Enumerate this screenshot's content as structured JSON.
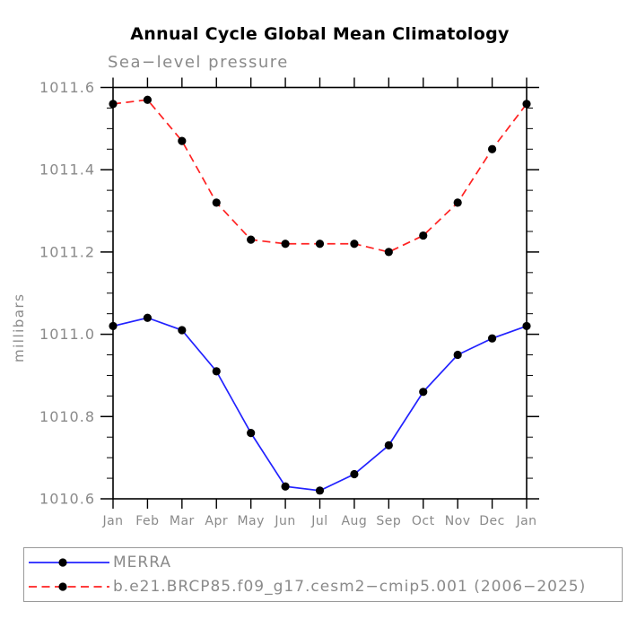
{
  "chart_data": {
    "type": "line",
    "title": "Annual Cycle Global Mean Climatology",
    "subtitle": "Sea−level pressure",
    "ylabel": "millibars",
    "xlabel": "",
    "categories": [
      "Jan",
      "Feb",
      "Mar",
      "Apr",
      "May",
      "Jun",
      "Jul",
      "Aug",
      "Sep",
      "Oct",
      "Nov",
      "Dec",
      "Jan"
    ],
    "ylim": [
      1010.6,
      1011.6
    ],
    "ytick_major": 0.2,
    "ytick_minor": 0.05,
    "ytick_labels": [
      "1011.6",
      "1011.4",
      "1011.2",
      "1011.0",
      "1010.8",
      "1010.6"
    ],
    "grid": false,
    "legend_position": "bottom",
    "series": [
      {
        "name": "MERRA",
        "style": "solid",
        "color": "#2222ff",
        "marker": "circle",
        "marker_color": "#000000",
        "values": [
          1011.02,
          1011.04,
          1011.01,
          1010.91,
          1010.76,
          1010.63,
          1010.62,
          1010.66,
          1010.73,
          1010.86,
          1010.95,
          1010.99,
          1011.02
        ]
      },
      {
        "name": "b.e21.BRCP85.f09_g17.cesm2−cmip5.001 (2006−2025)",
        "style": "dashed",
        "color": "#ff2222",
        "marker": "circle",
        "marker_color": "#000000",
        "values": [
          1011.56,
          1011.57,
          1011.47,
          1011.32,
          1011.23,
          1011.22,
          1011.22,
          1011.22,
          1011.2,
          1011.24,
          1011.32,
          1011.45,
          1011.56
        ]
      }
    ]
  },
  "colors": {
    "label_gray": "#8a8a8a",
    "axis_black": "#000000",
    "legend_border": "#9a9a9a"
  }
}
